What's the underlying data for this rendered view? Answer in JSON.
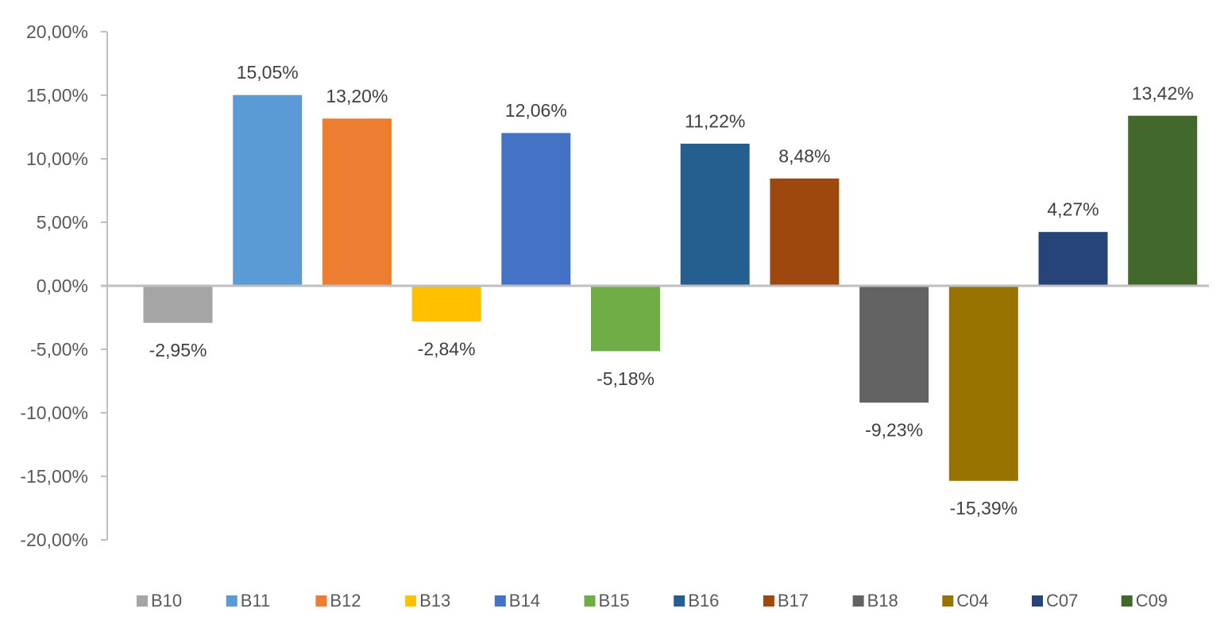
{
  "chart_data": {
    "type": "bar",
    "title": "",
    "xlabel": "",
    "ylabel": "",
    "ylim": [
      -20,
      20
    ],
    "y_tick_step": 5,
    "y_tick_labels": [
      "20,00%",
      "15,00%",
      "10,00%",
      "5,00%",
      "0,00%",
      "-5,00%",
      "-10,00%",
      "-15,00%",
      "-20,00%"
    ],
    "grid": false,
    "legend_position": "bottom",
    "series": [
      {
        "name": "B10",
        "value": -2.95,
        "label": "-2,95%",
        "color": "#a5a5a5"
      },
      {
        "name": "B11",
        "value": 15.05,
        "label": "15,05%",
        "color": "#5b9bd5"
      },
      {
        "name": "B12",
        "value": 13.2,
        "label": "13,20%",
        "color": "#ed7d31"
      },
      {
        "name": "B13",
        "value": -2.84,
        "label": "-2,84%",
        "color": "#ffc000"
      },
      {
        "name": "B14",
        "value": 12.06,
        "label": "12,06%",
        "color": "#4472c4"
      },
      {
        "name": "B15",
        "value": -5.18,
        "label": "-5,18%",
        "color": "#70ad47"
      },
      {
        "name": "B16",
        "value": 11.22,
        "label": "11,22%",
        "color": "#255e91"
      },
      {
        "name": "B17",
        "value": 8.48,
        "label": "8,48%",
        "color": "#9e480e"
      },
      {
        "name": "B18",
        "value": -9.23,
        "label": "-9,23%",
        "color": "#636363"
      },
      {
        "name": "C04",
        "value": -15.39,
        "label": "-15,39%",
        "color": "#997300"
      },
      {
        "name": "C07",
        "value": 4.27,
        "label": "4,27%",
        "color": "#264478"
      },
      {
        "name": "C09",
        "value": 13.42,
        "label": "13,42%",
        "color": "#43682b"
      }
    ]
  }
}
